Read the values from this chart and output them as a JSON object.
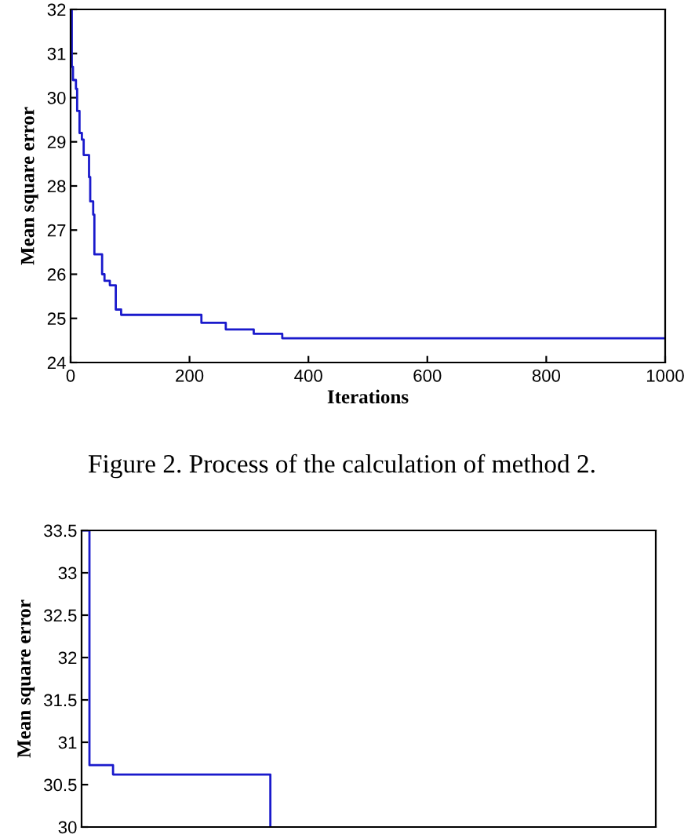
{
  "chart_data": [
    {
      "type": "step",
      "xlabel": "Iterations",
      "ylabel": "Mean square error",
      "annotations": [
        "Figure 2. Process of the calculation of method 2."
      ],
      "xlim": [
        0,
        1000
      ],
      "ylim": [
        24,
        32
      ],
      "xticks": [
        0,
        200,
        400,
        600,
        800,
        1000
      ],
      "yticks": [
        24,
        25,
        26,
        27,
        28,
        29,
        30,
        31,
        32
      ],
      "x": [
        0,
        2,
        4,
        9,
        11,
        15,
        19,
        22,
        31,
        33,
        38,
        40,
        53,
        57,
        66,
        76,
        85,
        220,
        261,
        308,
        356,
        1000
      ],
      "series": [
        {
          "color": "#1a1acc",
          "values": [
            32,
            30.7,
            30.4,
            30.2,
            29.7,
            29.2,
            29.05,
            28.7,
            28.2,
            27.65,
            27.35,
            26.45,
            26.0,
            25.85,
            25.75,
            25.2,
            25.08,
            24.9,
            24.75,
            24.65,
            24.55,
            24.55
          ]
        }
      ]
    },
    {
      "type": "step",
      "ylabel": "Mean square error",
      "ylim": [
        30,
        33.5
      ],
      "yticks": [
        30,
        30.5,
        31,
        31.5,
        32,
        32.5,
        33,
        33.5
      ],
      "tick_labels": "y",
      "categories": [
        null,
        null,
        null,
        null,
        null,
        null,
        null,
        null,
        null,
        null,
        null,
        null,
        null,
        null,
        null,
        null,
        null,
        null,
        null,
        null,
        null,
        null,
        null,
        null,
        null,
        null,
        null,
        null,
        null,
        null,
        null,
        null,
        null,
        null,
        null,
        null,
        null,
        null,
        null,
        null,
        null,
        null,
        null,
        null,
        null,
        null,
        null,
        null,
        null,
        null,
        null,
        null,
        null,
        null,
        null,
        null,
        null,
        null,
        null,
        null,
        null,
        null,
        null,
        null,
        null,
        null,
        null,
        null,
        null,
        null,
        null,
        null,
        null,
        null
      ],
      "series": [
        {
          "color": "#1a1acc",
          "values": [
            33.5,
            30.73,
            30.73,
            30.73,
            30.62,
            30.62,
            30.62,
            30.62,
            30.62,
            30.62,
            30.62,
            30.62,
            30.62,
            30.62,
            30.62,
            30.62,
            30.62,
            30.62,
            30.62,
            30.62,
            30.62,
            30.62,
            30.62,
            30.62,
            30.0,
            null,
            null,
            null,
            null,
            null,
            null,
            null,
            null,
            null,
            null,
            null,
            null,
            null,
            null,
            null,
            null,
            null,
            null,
            null,
            null,
            null,
            null,
            null,
            null,
            null,
            null,
            null,
            null,
            null,
            null,
            null,
            null,
            null,
            null,
            null,
            null,
            null,
            null,
            null,
            null,
            null,
            null,
            null,
            null,
            null,
            null,
            null,
            null,
            null
          ]
        }
      ]
    }
  ]
}
